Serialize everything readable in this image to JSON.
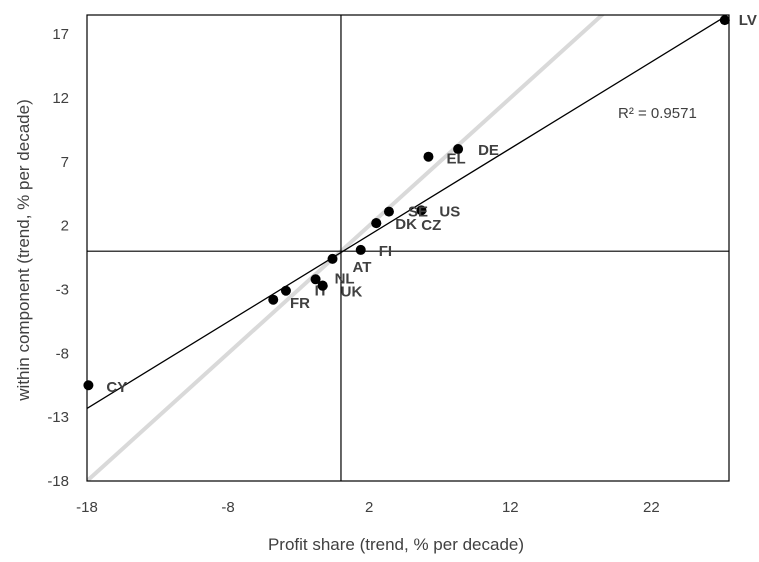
{
  "chart_data": {
    "type": "scatter",
    "xlabel": "Profit share (trend, % per decade)",
    "ylabel": "within component (trend, % per decade)",
    "xlim": [
      -18,
      27.5
    ],
    "ylim": [
      -18,
      18.5
    ],
    "xticks": [
      -18,
      -8,
      2,
      12,
      22
    ],
    "yticks": [
      17,
      12,
      7,
      2,
      -3,
      -8,
      -13,
      -18
    ],
    "grid": false,
    "reference_axes": {
      "x": 0,
      "y": 0
    },
    "points": [
      {
        "label": "LV",
        "x": 27.2,
        "y": 18.1
      },
      {
        "label": "DE",
        "x": 8.3,
        "y": 8.0
      },
      {
        "label": "EL",
        "x": 6.2,
        "y": 7.4
      },
      {
        "label": "US",
        "x": 5.7,
        "y": 3.2
      },
      {
        "label": "SE",
        "x": 3.4,
        "y": 3.1
      },
      {
        "label": "DK",
        "x": 2.5,
        "y": 2.2
      },
      {
        "label": "CZ",
        "x": 2.5,
        "y": 2.2
      },
      {
        "label": "FI",
        "x": 1.4,
        "y": 0.1
      },
      {
        "label": "AT",
        "x": -0.6,
        "y": -0.6
      },
      {
        "label": "NL",
        "x": -1.8,
        "y": -2.2
      },
      {
        "label": "IT",
        "x": -1.3,
        "y": -2.7
      },
      {
        "label": "UK",
        "x": -1.3,
        "y": -2.7
      },
      {
        "label": "FR",
        "x": -3.9,
        "y": -3.1
      },
      {
        "label": "",
        "x": -4.8,
        "y": -3.8
      },
      {
        "label": "CY",
        "x": -17.9,
        "y": -10.5
      }
    ],
    "trendline": {
      "slope": 0.6785,
      "intercept": -0.1,
      "x_range": [
        -18,
        27.2
      ],
      "r2_text": "R² = 0.9571"
    },
    "diagonal": {
      "slope": 1,
      "intercept": 0,
      "color": "#d9d9d9"
    },
    "colors": {
      "points": "#000000",
      "trendline": "#000000",
      "axes": "#000000",
      "text": "#404040"
    }
  }
}
